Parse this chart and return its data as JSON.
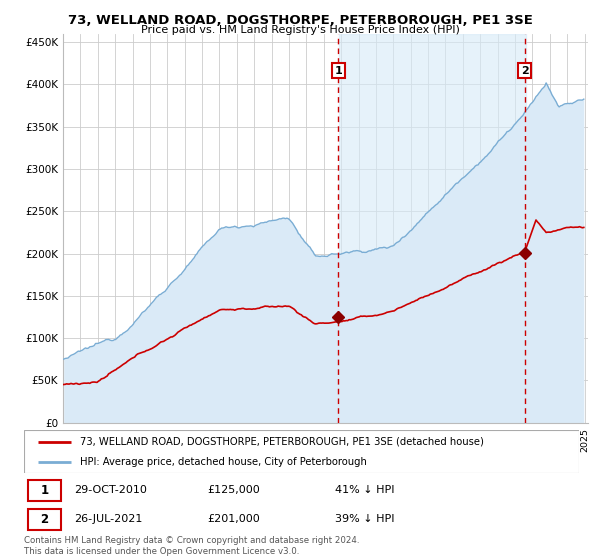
{
  "title": "73, WELLAND ROAD, DOGSTHORPE, PETERBOROUGH, PE1 3SE",
  "subtitle": "Price paid vs. HM Land Registry's House Price Index (HPI)",
  "ylabel_ticks": [
    "£0",
    "£50K",
    "£100K",
    "£150K",
    "£200K",
    "£250K",
    "£300K",
    "£350K",
    "£400K",
    "£450K"
  ],
  "ytick_values": [
    0,
    50000,
    100000,
    150000,
    200000,
    250000,
    300000,
    350000,
    400000,
    450000
  ],
  "ylim": [
    0,
    460000
  ],
  "year_start": 1995,
  "year_end": 2025,
  "sale1_year": 2010.83,
  "sale1_price": 125000,
  "sale2_year": 2021.56,
  "sale2_price": 201000,
  "red_line_color": "#cc0000",
  "blue_line_color": "#7aadd4",
  "blue_fill_color": "#daeaf7",
  "vline_color": "#cc0000",
  "marker_color": "#8b0000",
  "grid_color": "#cccccc",
  "background_color": "#ffffff",
  "legend_label_red": "73, WELLAND ROAD, DOGSTHORPE, PETERBOROUGH, PE1 3SE (detached house)",
  "legend_label_blue": "HPI: Average price, detached house, City of Peterborough",
  "footnote": "Contains HM Land Registry data © Crown copyright and database right 2024.\nThis data is licensed under the Open Government Licence v3.0.",
  "table_row1": [
    "1",
    "29-OCT-2010",
    "£125,000",
    "41% ↓ HPI"
  ],
  "table_row2": [
    "2",
    "26-JUL-2021",
    "£201,000",
    "39% ↓ HPI"
  ]
}
